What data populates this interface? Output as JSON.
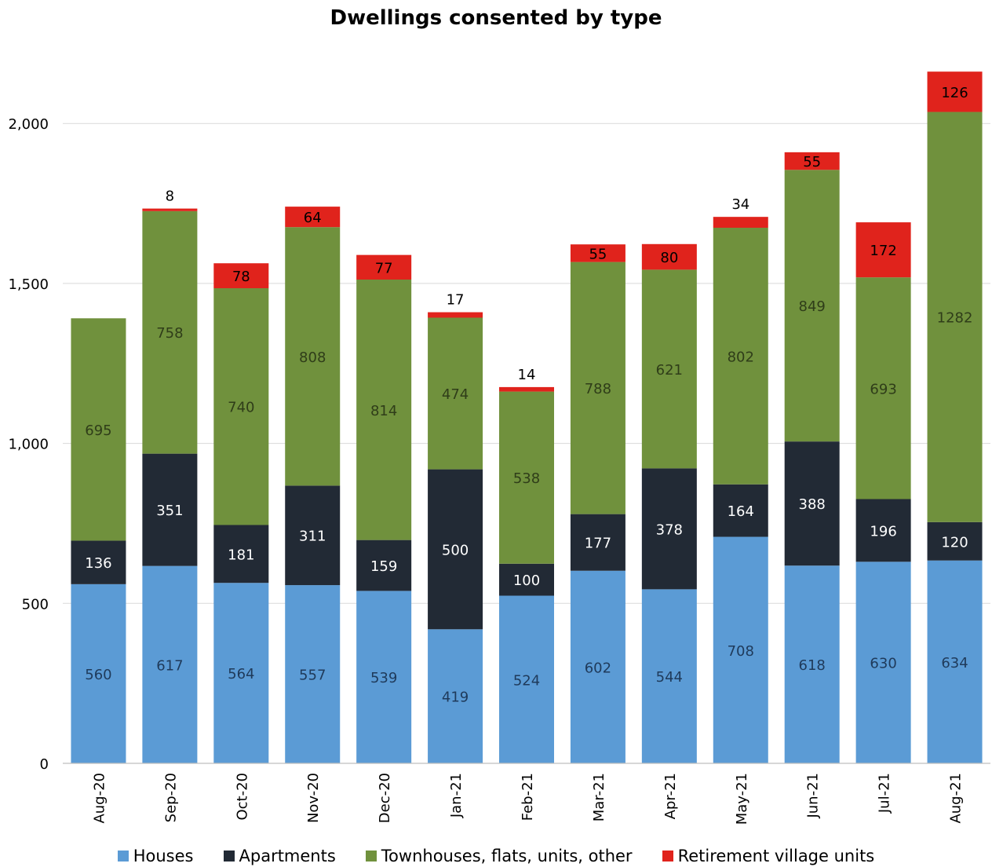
{
  "chart_data": {
    "type": "bar",
    "stacked": true,
    "title": "Dwellings consented by type",
    "categories": [
      "Aug-20",
      "Sep-20",
      "Oct-20",
      "Nov-20",
      "Dec-20",
      "Jan-21",
      "Feb-21",
      "Mar-21",
      "Apr-21",
      "May-21",
      "Jun-21",
      "Jul-21",
      "Aug-21"
    ],
    "series": [
      {
        "name": "Houses",
        "color": "#5b9bd5",
        "label_color": "#1f3a5a",
        "values": [
          560,
          617,
          564,
          557,
          539,
          419,
          524,
          602,
          544,
          708,
          618,
          630,
          634
        ]
      },
      {
        "name": "Apartments",
        "color": "#222a35",
        "label_color": "#ffffff",
        "values": [
          136,
          351,
          181,
          311,
          159,
          500,
          100,
          177,
          378,
          164,
          388,
          196,
          120
        ]
      },
      {
        "name": "Townhouses, flats, units, other",
        "color": "#70913d",
        "label_color": "#2f3d19",
        "values": [
          695,
          758,
          740,
          808,
          814,
          474,
          538,
          788,
          621,
          802,
          849,
          693,
          1282
        ]
      },
      {
        "name": "Retirement village units",
        "color": "#e0231c",
        "label_color": "#000000",
        "values": [
          null,
          8,
          78,
          64,
          77,
          17,
          14,
          55,
          80,
          34,
          55,
          172,
          126
        ]
      }
    ],
    "ylim": [
      0,
      2150
    ],
    "y_ticks": [
      0,
      500,
      1000,
      1500,
      2000
    ],
    "y_tick_labels": [
      "0",
      "500",
      "1,000",
      "1,500",
      "2,000"
    ],
    "grid": true,
    "legend_position": "bottom",
    "xlabel": "",
    "ylabel": ""
  }
}
